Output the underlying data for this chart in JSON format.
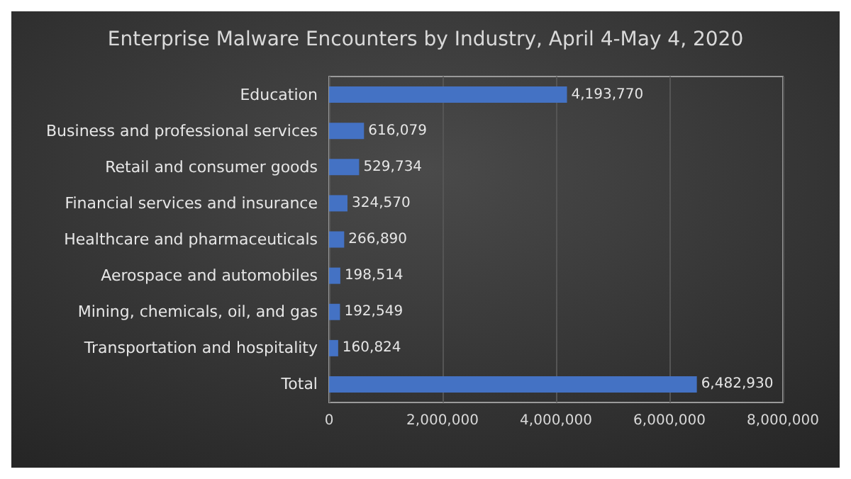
{
  "chart_data": {
    "type": "bar",
    "orientation": "horizontal",
    "title": "Enterprise Malware Encounters by Industry, April 4-May 4, 2020",
    "categories": [
      "Education",
      "Business and professional services",
      "Retail and consumer goods",
      "Financial services and insurance",
      "Healthcare and pharmaceuticals",
      "Aerospace and automobiles",
      "Mining, chemicals, oil, and gas",
      "Transportation and hospitality",
      "Total"
    ],
    "values": [
      4193770,
      616079,
      529734,
      324570,
      266890,
      198514,
      192549,
      160824,
      6482930
    ],
    "value_labels": [
      "4,193,770",
      "616,079",
      "529,734",
      "324,570",
      "266,890",
      "198,514",
      "192,549",
      "160,824",
      "6,482,930"
    ],
    "color": "#4472c4",
    "xlim": [
      0,
      8000000
    ],
    "xticks": [
      0,
      {
        "value": 2000000,
        "label": "2,000,000"
      },
      {
        "value": 4000000,
        "label": "4,000,000"
      },
      {
        "value": 6000000,
        "label": "6,000,000"
      },
      {
        "value": 8000000,
        "label": "8,000,000"
      }
    ],
    "grid": "x"
  }
}
